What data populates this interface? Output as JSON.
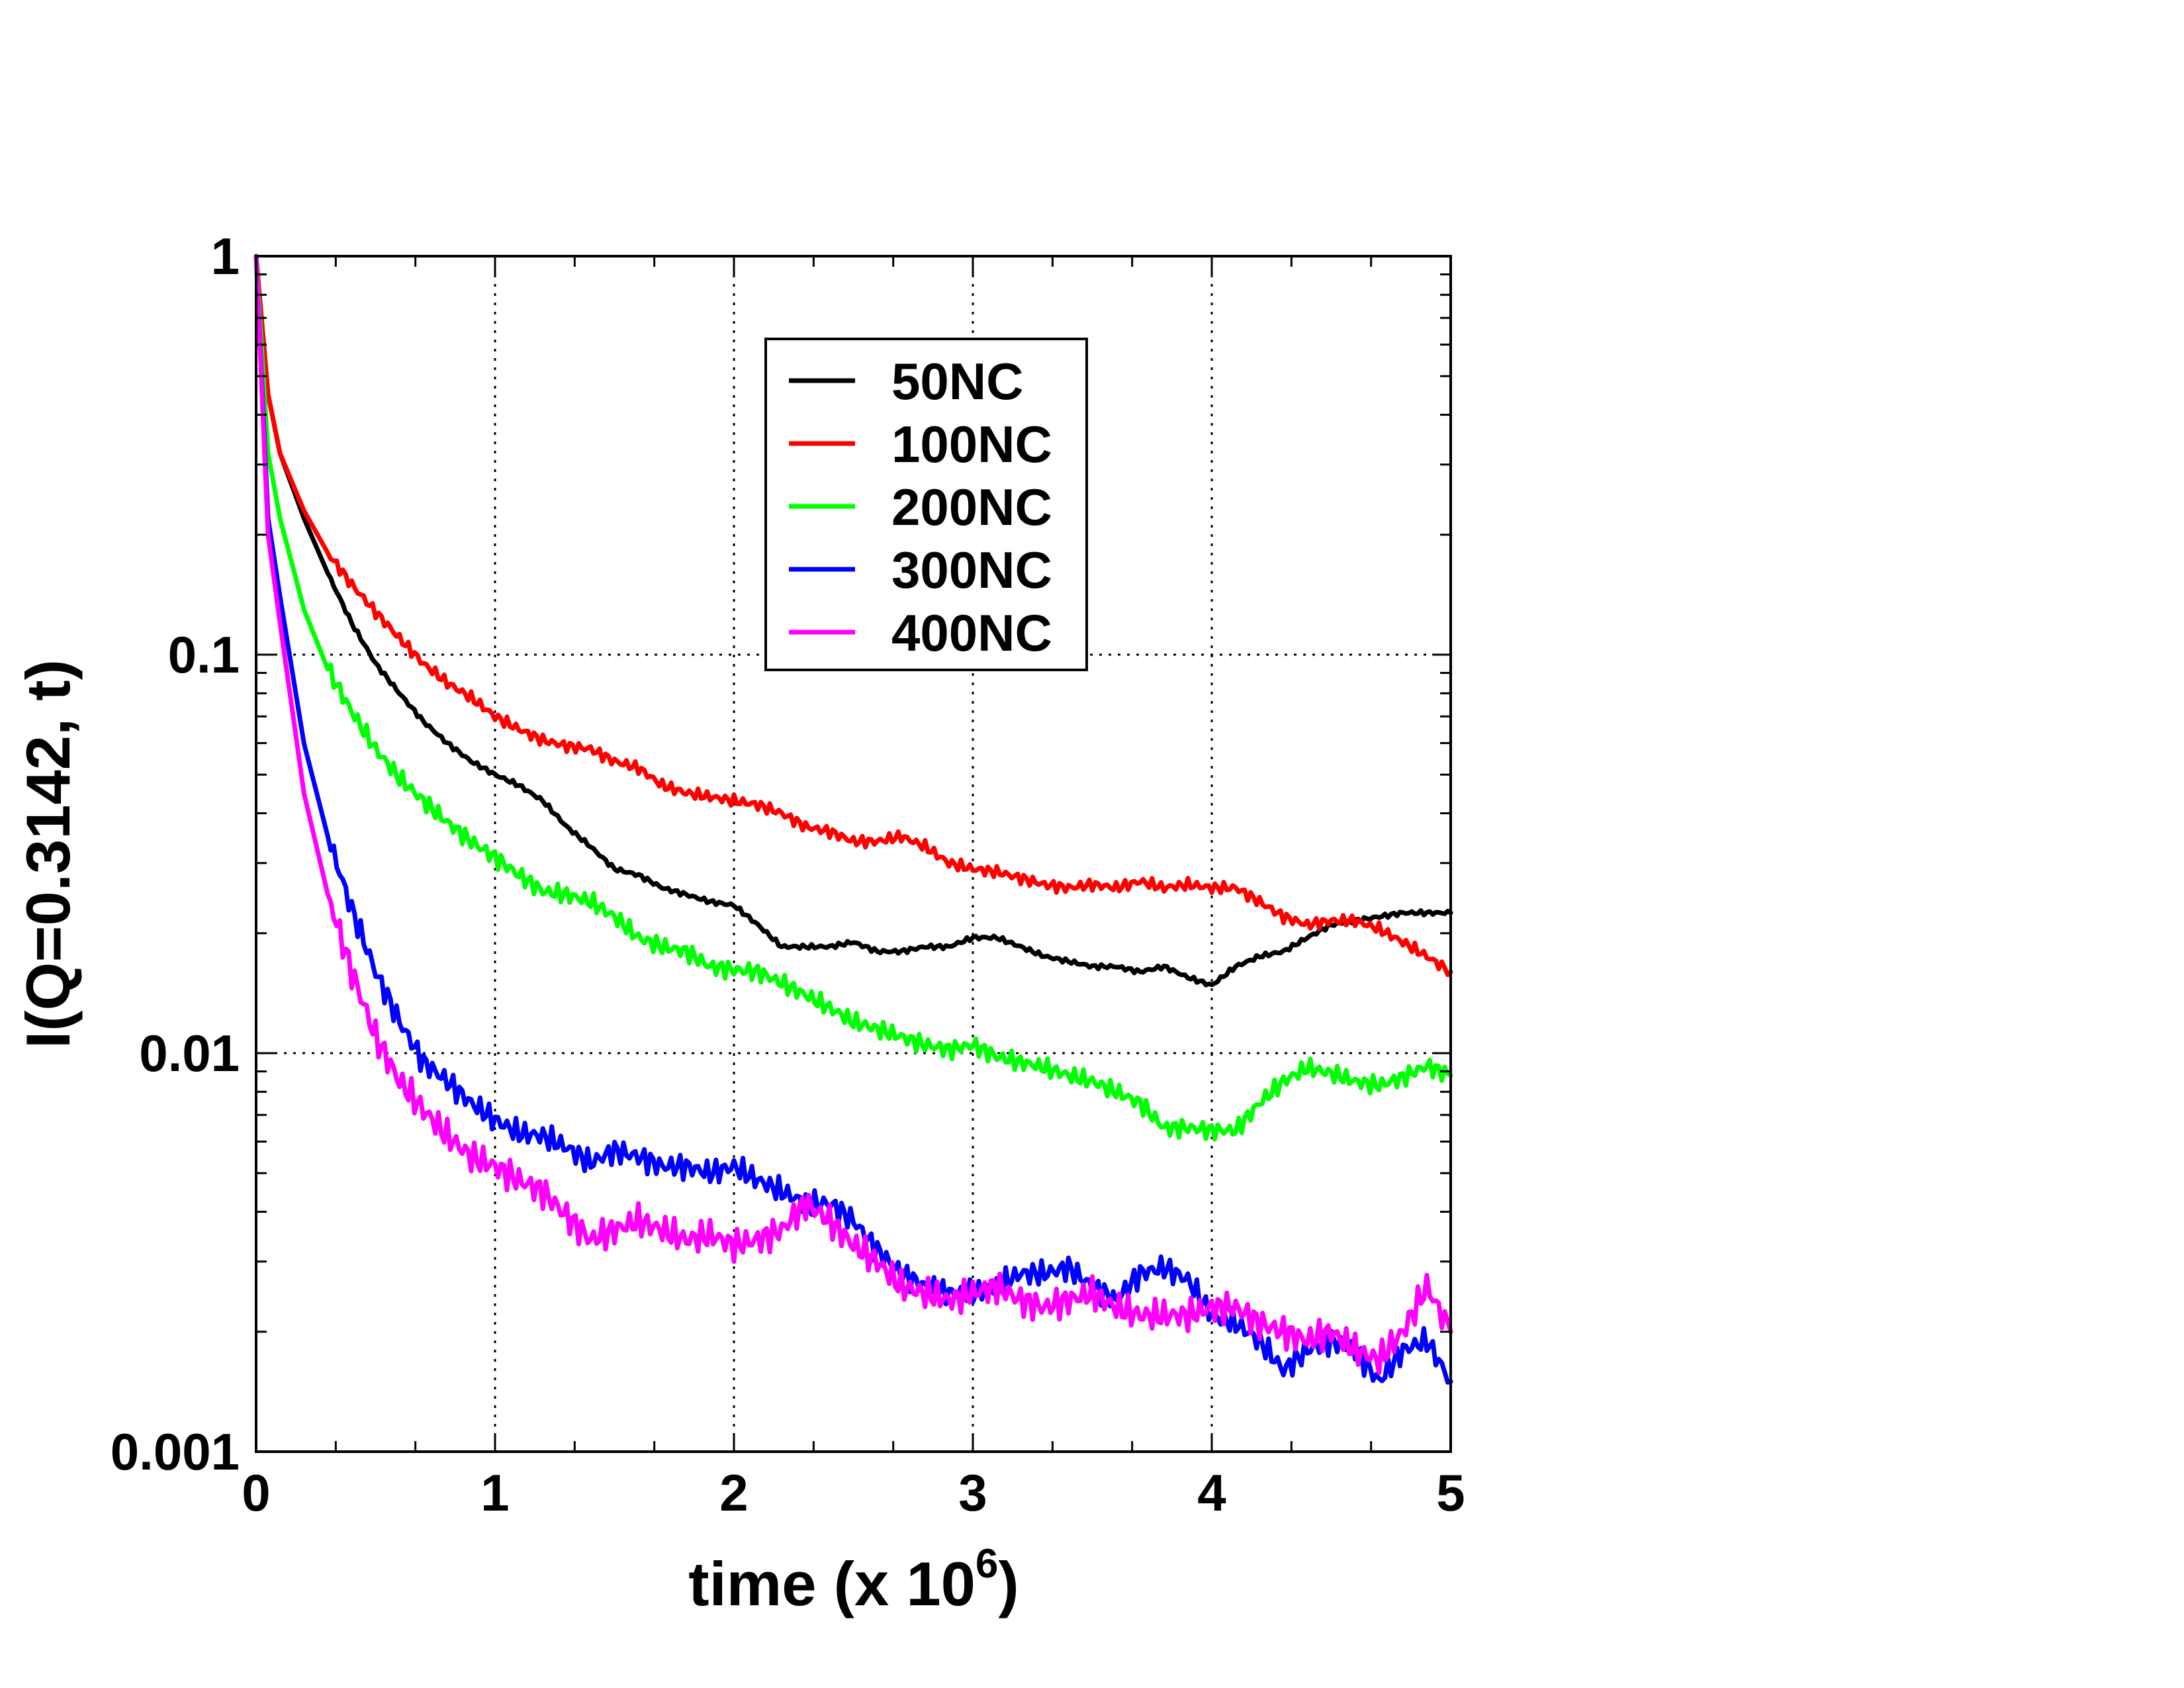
{
  "chart_data": {
    "type": "line",
    "xlabel": "time (x 10",
    "xlabel_sup": "6",
    "xlabel_close": ")",
    "ylabel": "I(Q=0.3142, t)",
    "xlim": [
      0,
      5
    ],
    "ylim": [
      0.001,
      1
    ],
    "yscale": "log",
    "grid": "dotted at major ticks",
    "legend_position": "top-center",
    "x_ticks": [
      "0",
      "1",
      "2",
      "3",
      "4",
      "5"
    ],
    "y_ticks": [
      "0.001",
      "0.01",
      "0.1",
      "1"
    ],
    "x": [
      0,
      0.05,
      0.1,
      0.2,
      0.3,
      0.4,
      0.5,
      0.6,
      0.7,
      0.8,
      0.9,
      1.0,
      1.1,
      1.2,
      1.3,
      1.4,
      1.5,
      1.6,
      1.7,
      1.8,
      1.9,
      2.0,
      2.1,
      2.2,
      2.3,
      2.4,
      2.5,
      2.6,
      2.7,
      2.8,
      2.9,
      3.0,
      3.1,
      3.2,
      3.3,
      3.4,
      3.5,
      3.6,
      3.7,
      3.8,
      3.9,
      4.0,
      4.1,
      4.2,
      4.3,
      4.4,
      4.5,
      4.6,
      4.7,
      4.8,
      4.9,
      5.0
    ],
    "series": [
      {
        "name": "50NC",
        "color": "#000000",
        "values": [
          1.0,
          0.45,
          0.32,
          0.22,
          0.16,
          0.12,
          0.095,
          0.08,
          0.068,
          0.06,
          0.054,
          0.05,
          0.047,
          0.043,
          0.037,
          0.033,
          0.029,
          0.028,
          0.026,
          0.025,
          0.024,
          0.0235,
          0.021,
          0.0185,
          0.0185,
          0.0185,
          0.019,
          0.018,
          0.018,
          0.0185,
          0.0185,
          0.0195,
          0.0195,
          0.0185,
          0.0175,
          0.017,
          0.0165,
          0.0165,
          0.016,
          0.0165,
          0.0155,
          0.0148,
          0.0165,
          0.0175,
          0.018,
          0.0195,
          0.021,
          0.0215,
          0.022,
          0.0225,
          0.0225,
          0.0225
        ]
      },
      {
        "name": "100NC",
        "color": "#ff0000",
        "values": [
          1.0,
          0.45,
          0.32,
          0.23,
          0.18,
          0.15,
          0.128,
          0.11,
          0.095,
          0.085,
          0.078,
          0.07,
          0.065,
          0.061,
          0.059,
          0.058,
          0.054,
          0.052,
          0.047,
          0.045,
          0.044,
          0.043,
          0.042,
          0.04,
          0.037,
          0.036,
          0.034,
          0.034,
          0.035,
          0.033,
          0.03,
          0.029,
          0.0285,
          0.0275,
          0.0265,
          0.026,
          0.0265,
          0.026,
          0.027,
          0.026,
          0.0265,
          0.026,
          0.026,
          0.024,
          0.022,
          0.021,
          0.0215,
          0.0215,
          0.0205,
          0.019,
          0.0175,
          0.016
        ]
      },
      {
        "name": "200NC",
        "color": "#00ff00",
        "values": [
          1.0,
          0.32,
          0.22,
          0.13,
          0.092,
          0.072,
          0.058,
          0.049,
          0.043,
          0.038,
          0.034,
          0.031,
          0.028,
          0.0255,
          0.025,
          0.024,
          0.022,
          0.0195,
          0.0185,
          0.018,
          0.0165,
          0.0162,
          0.016,
          0.015,
          0.014,
          0.013,
          0.012,
          0.0115,
          0.011,
          0.0105,
          0.0102,
          0.0105,
          0.0098,
          0.0095,
          0.0092,
          0.0088,
          0.0085,
          0.008,
          0.0075,
          0.0065,
          0.0065,
          0.0064,
          0.0064,
          0.0075,
          0.0085,
          0.0092,
          0.0089,
          0.0085,
          0.0083,
          0.0087,
          0.0093,
          0.0088
        ]
      },
      {
        "name": "300NC",
        "color": "#0000ff",
        "values": [
          1.0,
          0.22,
          0.14,
          0.06,
          0.035,
          0.023,
          0.016,
          0.012,
          0.0095,
          0.0085,
          0.0075,
          0.0068,
          0.0063,
          0.0062,
          0.0058,
          0.0053,
          0.0057,
          0.0055,
          0.0052,
          0.0052,
          0.005,
          0.0052,
          0.0048,
          0.0045,
          0.0042,
          0.0042,
          0.0038,
          0.0032,
          0.0028,
          0.0026,
          0.0025,
          0.0025,
          0.0026,
          0.0028,
          0.0028,
          0.0029,
          0.0026,
          0.0024,
          0.0028,
          0.0029,
          0.0027,
          0.0022,
          0.0021,
          0.0019,
          0.0016,
          0.0018,
          0.0019,
          0.0018,
          0.0015,
          0.0018,
          0.0019,
          0.0015
        ]
      },
      {
        "name": "400NC",
        "color": "#ff00ff",
        "values": [
          1.0,
          0.2,
          0.12,
          0.045,
          0.025,
          0.016,
          0.011,
          0.0085,
          0.0072,
          0.0062,
          0.0055,
          0.0052,
          0.0048,
          0.0045,
          0.0039,
          0.0034,
          0.0036,
          0.0038,
          0.0036,
          0.0034,
          0.0035,
          0.0033,
          0.0034,
          0.0036,
          0.0042,
          0.0038,
          0.0033,
          0.003,
          0.0026,
          0.0025,
          0.0024,
          0.0025,
          0.0026,
          0.0024,
          0.0023,
          0.0024,
          0.0025,
          0.0023,
          0.0022,
          0.0022,
          0.0022,
          0.0023,
          0.0023,
          0.0021,
          0.002,
          0.0019,
          0.002,
          0.0018,
          0.0017,
          0.002,
          0.0026,
          0.002
        ]
      }
    ]
  }
}
